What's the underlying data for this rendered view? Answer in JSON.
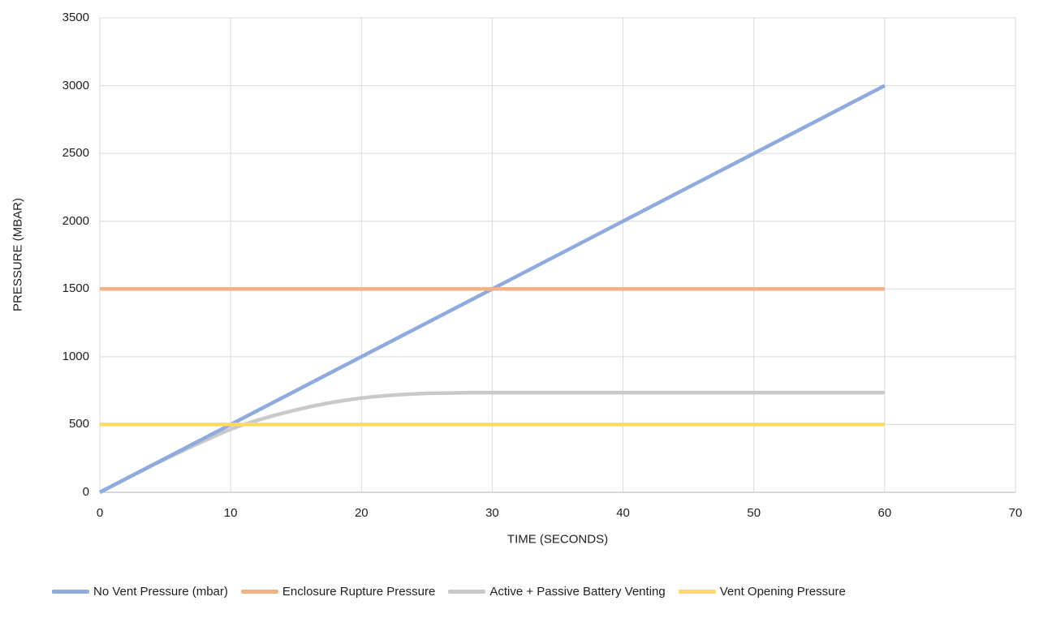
{
  "chart_data": {
    "type": "line",
    "title": "",
    "xlabel": "TIME (SECONDS)",
    "ylabel": "PRESSURE (MBAR)",
    "xlim": [
      0,
      70
    ],
    "ylim": [
      0,
      3500
    ],
    "xticks": [
      0,
      10,
      20,
      30,
      40,
      50,
      60,
      70
    ],
    "yticks": [
      0,
      500,
      1000,
      1500,
      2000,
      2500,
      3000,
      3500
    ],
    "grid": true,
    "legend_position": "bottom",
    "series": [
      {
        "name": "No Vent Pressure (mbar)",
        "color": "#8FAADC",
        "points": [
          [
            0,
            0
          ],
          [
            60,
            3000
          ]
        ]
      },
      {
        "name": "Enclosure Rupture Pressure",
        "color": "#F4B183",
        "points": [
          [
            0,
            1500
          ],
          [
            60,
            1500
          ]
        ]
      },
      {
        "name": "Active + Passive Battery Venting",
        "color": "#C9C9C9",
        "points": [
          [
            0,
            0
          ],
          [
            1,
            50
          ],
          [
            2,
            100
          ],
          [
            3,
            149
          ],
          [
            4,
            198
          ],
          [
            5,
            245
          ],
          [
            6,
            291
          ],
          [
            7,
            336
          ],
          [
            8,
            380
          ],
          [
            9,
            424
          ],
          [
            10,
            465
          ],
          [
            11,
            500
          ],
          [
            12,
            530
          ],
          [
            13,
            558
          ],
          [
            14,
            584
          ],
          [
            15,
            608
          ],
          [
            16,
            630
          ],
          [
            17,
            650
          ],
          [
            18,
            667
          ],
          [
            19,
            682
          ],
          [
            20,
            695
          ],
          [
            21,
            706
          ],
          [
            22,
            714
          ],
          [
            23,
            721
          ],
          [
            24,
            726
          ],
          [
            25,
            730
          ],
          [
            26,
            732
          ],
          [
            27,
            733
          ],
          [
            28,
            734
          ],
          [
            29,
            735
          ],
          [
            30,
            735
          ],
          [
            35,
            735
          ],
          [
            40,
            735
          ],
          [
            45,
            735
          ],
          [
            50,
            735
          ],
          [
            55,
            735
          ],
          [
            60,
            735
          ]
        ]
      },
      {
        "name": "Vent Opening Pressure",
        "color": "#FFD966",
        "points": [
          [
            0,
            500
          ],
          [
            60,
            500
          ]
        ]
      }
    ],
    "gridline_color": "#D9D9D9",
    "axis_line_color": "#BFBFBF",
    "text_color": "#1F1F1F",
    "background_color": "#FFFFFF"
  }
}
